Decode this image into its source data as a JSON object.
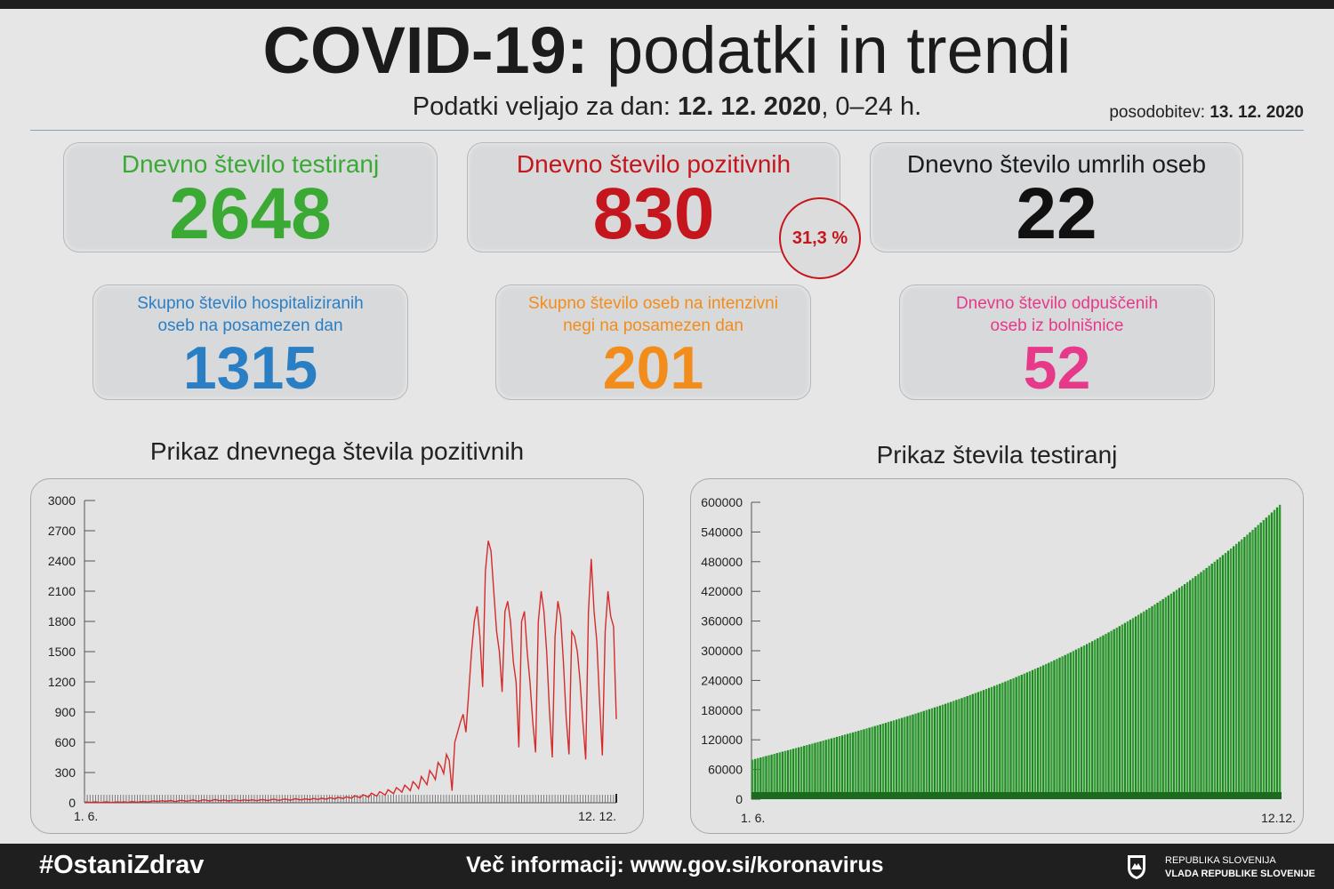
{
  "header": {
    "title_bold": "COVID-19:",
    "title_light": "podatki in trendi",
    "subtitle_prefix": "Podatki veljajo za dan:",
    "subtitle_date": "12. 12. 2020",
    "subtitle_suffix": ", 0–24 h.",
    "update_label": "posodobitev:",
    "update_date": "13. 12. 2020"
  },
  "stats": {
    "tests": {
      "label": "Dnevno število testiranj",
      "value": "2648",
      "color": "#3aaa35"
    },
    "positive": {
      "label": "Dnevno število pozitivnih",
      "value": "830",
      "color": "#c4161c"
    },
    "deaths": {
      "label": "Dnevno število umrlih oseb",
      "value": "22",
      "color": "#111111"
    },
    "positive_share": "31,3 %",
    "hospitalized": {
      "label_1": "Skupno število hospitaliziranih",
      "label_2": "oseb na posamezen dan",
      "value": "1315",
      "color": "#2a7fc4"
    },
    "icu": {
      "label_1": "Skupno število oseb na intenzivni",
      "label_2": "negi na posamezen dan",
      "value": "201",
      "color": "#f28c1b"
    },
    "discharged": {
      "label_1": "Dnevno število odpuščenih",
      "label_2": "oseb iz bolnišnice",
      "value": "52",
      "color": "#e6398a"
    }
  },
  "chart_data": [
    {
      "type": "line",
      "title": "Prikaz dnevnega števila pozitivnih",
      "x_start_label": "1. 6.",
      "x_end_label": "12. 12.",
      "ylim": [
        0,
        3000
      ],
      "yticks": [
        0,
        300,
        600,
        900,
        1200,
        1500,
        1800,
        2100,
        2400,
        2700,
        3000
      ],
      "color": "#d62b2b",
      "grid": false,
      "values": [
        5,
        8,
        3,
        6,
        10,
        4,
        2,
        7,
        9,
        5,
        3,
        6,
        8,
        4,
        10,
        6,
        5,
        12,
        8,
        6,
        9,
        14,
        10,
        7,
        15,
        18,
        12,
        16,
        20,
        14,
        18,
        22,
        15,
        12,
        20,
        25,
        18,
        16,
        22,
        28,
        20,
        15,
        24,
        30,
        22,
        18,
        26,
        32,
        24,
        20,
        28,
        22,
        18,
        25,
        30,
        24,
        20,
        28,
        26,
        22,
        30,
        25,
        20,
        28,
        32,
        26,
        22,
        30,
        35,
        28,
        24,
        32,
        38,
        30,
        26,
        35,
        40,
        32,
        28,
        38,
        35,
        30,
        42,
        38,
        32,
        45,
        40,
        35,
        50,
        45,
        38,
        55,
        48,
        42,
        60,
        52,
        45,
        70,
        60,
        50,
        80,
        70,
        55,
        95,
        80,
        65,
        110,
        95,
        75,
        130,
        110,
        90,
        150,
        130,
        105,
        175,
        150,
        120,
        210,
        180,
        140,
        260,
        220,
        180,
        320,
        280,
        230,
        400,
        360,
        290,
        480,
        420,
        120,
        600,
        700,
        800,
        880,
        700,
        1100,
        1500,
        1800,
        1950,
        1650,
        1150,
        2300,
        2600,
        2500,
        2100,
        1700,
        1500,
        1100,
        1900,
        2000,
        1800,
        1400,
        1200,
        550,
        1800,
        1900,
        1500,
        1200,
        800,
        500,
        1800,
        2100,
        1900,
        1500,
        900,
        450,
        1650,
        2000,
        1850,
        1400,
        850,
        480,
        1700,
        1650,
        1500,
        1200,
        800,
        430,
        1900,
        2420,
        1900,
        1600,
        1000,
        470,
        1700,
        2100,
        1850,
        1750,
        830
      ]
    },
    {
      "type": "bar",
      "title": "Prikaz števila testiranj",
      "x_start_label": "1. 6.",
      "x_end_label": "12.12.",
      "ylim": [
        0,
        600000
      ],
      "yticks": [
        0,
        60000,
        120000,
        180000,
        240000,
        300000,
        360000,
        420000,
        480000,
        540000,
        600000
      ],
      "color": "#2f9e2f",
      "grid": false,
      "series_description": "cumulative tests",
      "start_value": 80000,
      "end_value": 595000
    }
  ],
  "footer": {
    "hashtag": "#OstaniZdrav",
    "more_info": "Več informacij: www.gov.si/koronavirus",
    "gov_line_1": "REPUBLIKA SLOVENIJA",
    "gov_line_2": "VLADA REPUBLIKE SLOVENIJE"
  }
}
